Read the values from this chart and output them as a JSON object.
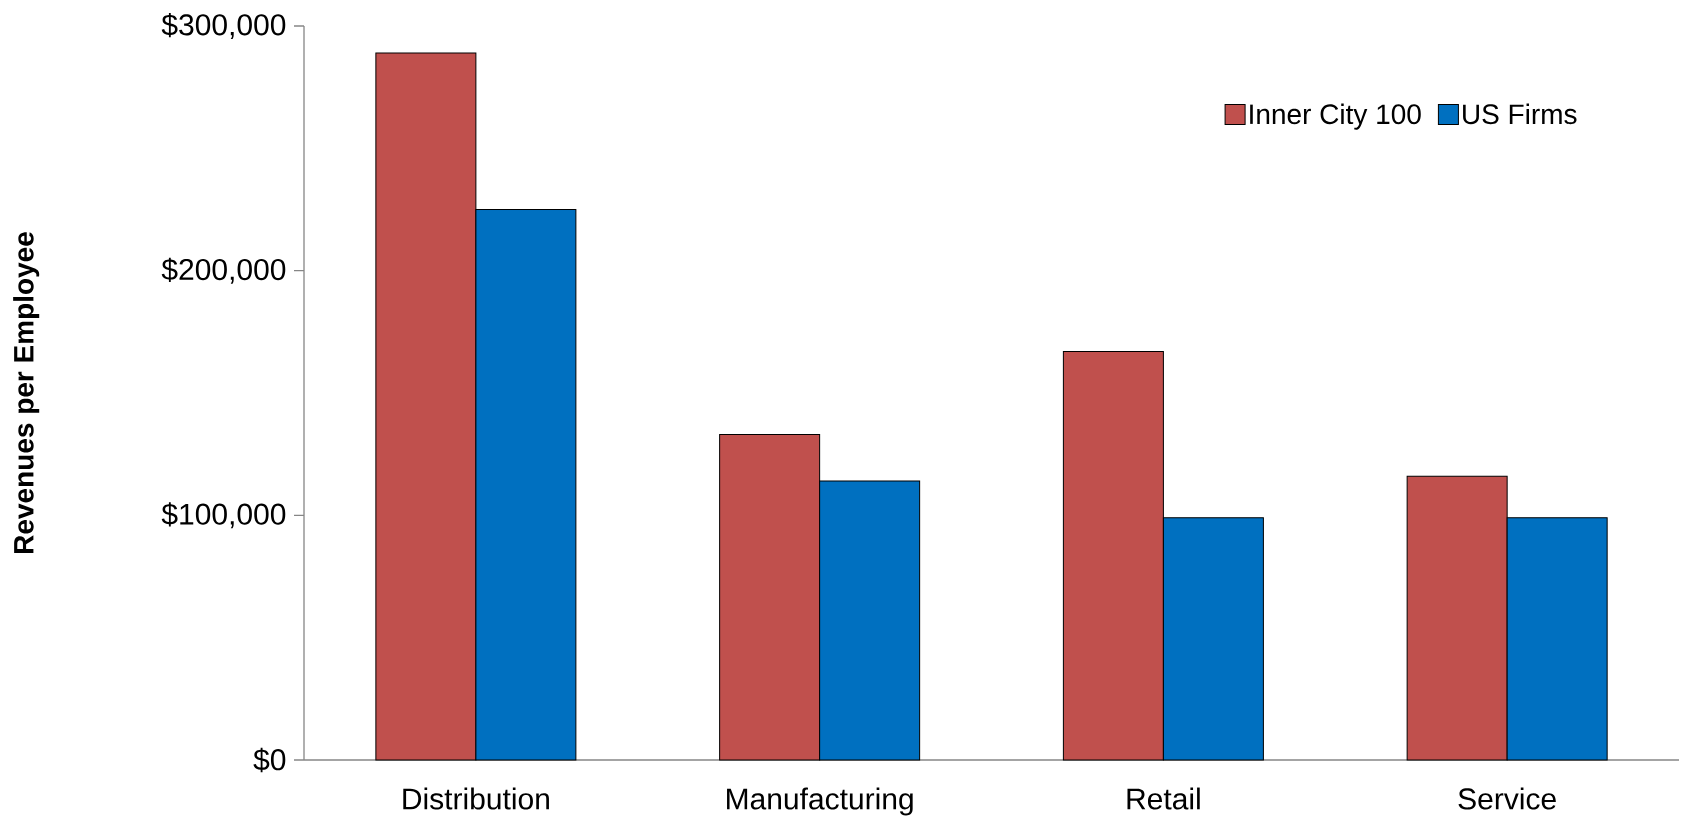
{
  "chart_data": {
    "type": "bar",
    "ylabel": "Revenues per Employee",
    "categories": [
      "Distribution",
      "Manufacturing",
      "Retail",
      "Service"
    ],
    "series": [
      {
        "name": "Inner City 100",
        "color": "#c0504d",
        "values": [
          289000,
          133000,
          167000,
          116000
        ]
      },
      {
        "name": "US Firms",
        "color": "#0070c0",
        "values": [
          225000,
          114000,
          99000,
          99000
        ]
      }
    ],
    "ylim": [
      0,
      300000
    ],
    "yticks": [
      {
        "value": 0,
        "label": "$0"
      },
      {
        "value": 100000,
        "label": "$100,000"
      },
      {
        "value": 200000,
        "label": "$200,000"
      },
      {
        "value": 300000,
        "label": "$300,000"
      }
    ],
    "grid": false,
    "legend": "top right"
  }
}
